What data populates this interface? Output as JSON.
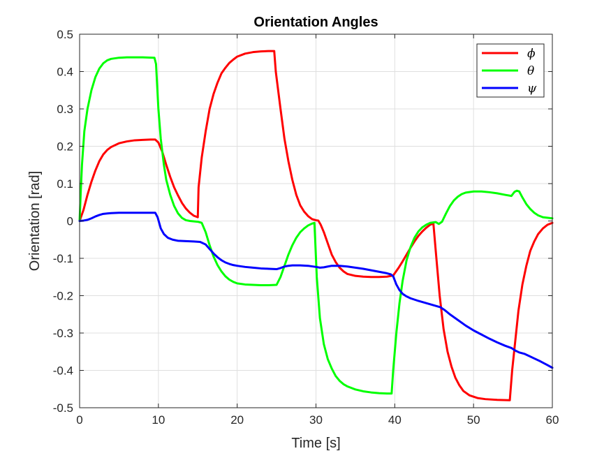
{
  "chart_data": {
    "type": "line",
    "title": "Orientation Angles",
    "xlabel": "Time [s]",
    "ylabel": "Orientation [rad]",
    "xlim": [
      0,
      60
    ],
    "ylim": [
      -0.5,
      0.5
    ],
    "xticks": [
      0,
      10,
      20,
      30,
      40,
      50,
      60
    ],
    "xtick_labels": [
      "0",
      "10",
      "20",
      "30",
      "40",
      "50",
      "60"
    ],
    "yticks": [
      -0.5,
      -0.4,
      -0.3,
      -0.2,
      -0.1,
      0,
      0.1,
      0.2,
      0.3,
      0.4,
      0.5
    ],
    "ytick_labels": [
      "-0.5",
      "-0.4",
      "-0.3",
      "-0.2",
      "-0.1",
      "0",
      "0.1",
      "0.2",
      "0.3",
      "0.4",
      "0.5"
    ],
    "grid": true,
    "legend_position": "top-right",
    "series": [
      {
        "name": "ϕ",
        "color": "#ff0000",
        "points": [
          [
            0,
            0
          ],
          [
            0.5,
            0.03
          ],
          [
            1,
            0.07
          ],
          [
            1.5,
            0.105
          ],
          [
            2,
            0.135
          ],
          [
            2.5,
            0.16
          ],
          [
            3,
            0.178
          ],
          [
            3.5,
            0.19
          ],
          [
            4,
            0.198
          ],
          [
            5,
            0.208
          ],
          [
            6,
            0.213
          ],
          [
            7,
            0.216
          ],
          [
            8,
            0.217
          ],
          [
            9,
            0.218
          ],
          [
            9.6,
            0.218
          ],
          [
            10,
            0.21
          ],
          [
            10.5,
            0.185
          ],
          [
            11,
            0.15
          ],
          [
            11.5,
            0.118
          ],
          [
            12,
            0.09
          ],
          [
            12.5,
            0.068
          ],
          [
            13,
            0.048
          ],
          [
            13.5,
            0.033
          ],
          [
            14,
            0.022
          ],
          [
            14.5,
            0.014
          ],
          [
            15,
            0.01
          ],
          [
            15.1,
            0.09
          ],
          [
            15.5,
            0.17
          ],
          [
            16,
            0.24
          ],
          [
            16.5,
            0.3
          ],
          [
            17,
            0.34
          ],
          [
            17.5,
            0.37
          ],
          [
            18,
            0.395
          ],
          [
            18.5,
            0.41
          ],
          [
            19,
            0.423
          ],
          [
            19.5,
            0.432
          ],
          [
            20,
            0.44
          ],
          [
            21,
            0.448
          ],
          [
            22,
            0.452
          ],
          [
            23,
            0.454
          ],
          [
            24,
            0.455
          ],
          [
            24.7,
            0.455
          ],
          [
            24.9,
            0.4
          ],
          [
            25.5,
            0.3
          ],
          [
            26,
            0.22
          ],
          [
            26.5,
            0.16
          ],
          [
            27,
            0.11
          ],
          [
            27.5,
            0.07
          ],
          [
            28,
            0.042
          ],
          [
            28.5,
            0.025
          ],
          [
            29,
            0.013
          ],
          [
            29.5,
            0.005
          ],
          [
            30,
            0.002
          ],
          [
            30.3,
            0.001
          ],
          [
            30.6,
            -0.01
          ],
          [
            31,
            -0.03
          ],
          [
            31.5,
            -0.06
          ],
          [
            32,
            -0.09
          ],
          [
            32.5,
            -0.11
          ],
          [
            33,
            -0.125
          ],
          [
            33.5,
            -0.135
          ],
          [
            34,
            -0.142
          ],
          [
            35,
            -0.147
          ],
          [
            36,
            -0.149
          ],
          [
            37,
            -0.15
          ],
          [
            38,
            -0.15
          ],
          [
            39,
            -0.149
          ],
          [
            39.8,
            -0.146
          ],
          [
            40.5,
            -0.125
          ],
          [
            41,
            -0.108
          ],
          [
            41.5,
            -0.09
          ],
          [
            42,
            -0.072
          ],
          [
            42.5,
            -0.055
          ],
          [
            43,
            -0.04
          ],
          [
            43.5,
            -0.028
          ],
          [
            44,
            -0.018
          ],
          [
            44.5,
            -0.01
          ],
          [
            44.9,
            -0.006
          ],
          [
            45.2,
            -0.08
          ],
          [
            45.7,
            -0.2
          ],
          [
            46.2,
            -0.29
          ],
          [
            46.7,
            -0.35
          ],
          [
            47.2,
            -0.39
          ],
          [
            47.7,
            -0.42
          ],
          [
            48.2,
            -0.44
          ],
          [
            48.7,
            -0.455
          ],
          [
            49.5,
            -0.467
          ],
          [
            50.5,
            -0.474
          ],
          [
            51.5,
            -0.477
          ],
          [
            53,
            -0.479
          ],
          [
            54.6,
            -0.48
          ],
          [
            54.9,
            -0.4
          ],
          [
            55.3,
            -0.32
          ],
          [
            55.7,
            -0.24
          ],
          [
            56.2,
            -0.17
          ],
          [
            56.7,
            -0.12
          ],
          [
            57.2,
            -0.08
          ],
          [
            57.7,
            -0.055
          ],
          [
            58.2,
            -0.035
          ],
          [
            58.8,
            -0.02
          ],
          [
            59.4,
            -0.01
          ],
          [
            60,
            -0.005
          ]
        ]
      },
      {
        "name": "θ",
        "color": "#00ff00",
        "points": [
          [
            0,
            0
          ],
          [
            0.15,
            0.08
          ],
          [
            0.3,
            0.15
          ],
          [
            0.6,
            0.24
          ],
          [
            1,
            0.3
          ],
          [
            1.5,
            0.35
          ],
          [
            2,
            0.385
          ],
          [
            2.5,
            0.408
          ],
          [
            3,
            0.422
          ],
          [
            3.5,
            0.43
          ],
          [
            4,
            0.434
          ],
          [
            5,
            0.437
          ],
          [
            6,
            0.438
          ],
          [
            7,
            0.438
          ],
          [
            8,
            0.438
          ],
          [
            9.5,
            0.437
          ],
          [
            9.7,
            0.42
          ],
          [
            10,
            0.3
          ],
          [
            10.3,
            0.22
          ],
          [
            10.7,
            0.15
          ],
          [
            11,
            0.11
          ],
          [
            11.5,
            0.07
          ],
          [
            12,
            0.04
          ],
          [
            12.5,
            0.02
          ],
          [
            13,
            0.008
          ],
          [
            13.5,
            0.002
          ],
          [
            14,
            0
          ],
          [
            15,
            -0.002
          ],
          [
            15.5,
            -0.005
          ],
          [
            16,
            -0.03
          ],
          [
            16.5,
            -0.065
          ],
          [
            17,
            -0.095
          ],
          [
            17.5,
            -0.118
          ],
          [
            18,
            -0.135
          ],
          [
            18.5,
            -0.148
          ],
          [
            19,
            -0.157
          ],
          [
            19.5,
            -0.163
          ],
          [
            20,
            -0.167
          ],
          [
            21,
            -0.17
          ],
          [
            22,
            -0.171
          ],
          [
            23,
            -0.172
          ],
          [
            24,
            -0.172
          ],
          [
            25,
            -0.171
          ],
          [
            25.5,
            -0.15
          ],
          [
            26,
            -0.12
          ],
          [
            26.5,
            -0.09
          ],
          [
            27,
            -0.065
          ],
          [
            27.5,
            -0.045
          ],
          [
            28,
            -0.03
          ],
          [
            28.5,
            -0.02
          ],
          [
            29,
            -0.012
          ],
          [
            29.5,
            -0.007
          ],
          [
            29.8,
            -0.005
          ],
          [
            29.9,
            -0.05
          ],
          [
            30.1,
            -0.15
          ],
          [
            30.5,
            -0.26
          ],
          [
            31,
            -0.33
          ],
          [
            31.5,
            -0.37
          ],
          [
            32,
            -0.395
          ],
          [
            32.5,
            -0.415
          ],
          [
            33,
            -0.428
          ],
          [
            33.5,
            -0.437
          ],
          [
            34,
            -0.443
          ],
          [
            35,
            -0.451
          ],
          [
            36,
            -0.456
          ],
          [
            37,
            -0.459
          ],
          [
            38,
            -0.461
          ],
          [
            39,
            -0.462
          ],
          [
            39.6,
            -0.462
          ],
          [
            39.8,
            -0.4
          ],
          [
            40.2,
            -0.3
          ],
          [
            40.6,
            -0.22
          ],
          [
            41,
            -0.16
          ],
          [
            41.5,
            -0.105
          ],
          [
            42,
            -0.07
          ],
          [
            42.5,
            -0.045
          ],
          [
            43,
            -0.028
          ],
          [
            43.5,
            -0.017
          ],
          [
            44,
            -0.01
          ],
          [
            44.5,
            -0.005
          ],
          [
            45.2,
            -0.003
          ],
          [
            45.6,
            -0.008
          ],
          [
            46,
            -0.002
          ],
          [
            46.5,
            0.02
          ],
          [
            47,
            0.04
          ],
          [
            47.5,
            0.055
          ],
          [
            48,
            0.065
          ],
          [
            48.5,
            0.072
          ],
          [
            49,
            0.076
          ],
          [
            50,
            0.079
          ],
          [
            51,
            0.079
          ],
          [
            52,
            0.077
          ],
          [
            53,
            0.074
          ],
          [
            54,
            0.07
          ],
          [
            54.8,
            0.067
          ],
          [
            55.2,
            0.078
          ],
          [
            55.5,
            0.081
          ],
          [
            55.8,
            0.079
          ],
          [
            56.2,
            0.063
          ],
          [
            56.7,
            0.045
          ],
          [
            57.2,
            0.032
          ],
          [
            57.7,
            0.022
          ],
          [
            58.2,
            0.015
          ],
          [
            58.8,
            0.01
          ],
          [
            60,
            0.007
          ]
        ]
      },
      {
        "name": "ψ",
        "color": "#0000ff",
        "points": [
          [
            0,
            0
          ],
          [
            0.5,
            0.001
          ],
          [
            1,
            0.003
          ],
          [
            1.5,
            0.007
          ],
          [
            2,
            0.012
          ],
          [
            2.5,
            0.016
          ],
          [
            3,
            0.019
          ],
          [
            3.5,
            0.02
          ],
          [
            4,
            0.021
          ],
          [
            5,
            0.022
          ],
          [
            6,
            0.022
          ],
          [
            7,
            0.022
          ],
          [
            8,
            0.022
          ],
          [
            9,
            0.022
          ],
          [
            9.6,
            0.022
          ],
          [
            9.9,
            0.01
          ],
          [
            10.3,
            -0.02
          ],
          [
            10.7,
            -0.035
          ],
          [
            11.2,
            -0.045
          ],
          [
            11.8,
            -0.05
          ],
          [
            12.5,
            -0.053
          ],
          [
            13.5,
            -0.054
          ],
          [
            14.5,
            -0.055
          ],
          [
            15.3,
            -0.056
          ],
          [
            16,
            -0.063
          ],
          [
            16.5,
            -0.075
          ],
          [
            17,
            -0.087
          ],
          [
            17.5,
            -0.097
          ],
          [
            18,
            -0.105
          ],
          [
            18.5,
            -0.111
          ],
          [
            19,
            -0.115
          ],
          [
            19.5,
            -0.118
          ],
          [
            20,
            -0.12
          ],
          [
            21,
            -0.123
          ],
          [
            22,
            -0.125
          ],
          [
            23,
            -0.127
          ],
          [
            24,
            -0.128
          ],
          [
            25,
            -0.129
          ],
          [
            25.5,
            -0.126
          ],
          [
            26,
            -0.122
          ],
          [
            26.5,
            -0.12
          ],
          [
            27,
            -0.119
          ],
          [
            28,
            -0.119
          ],
          [
            29,
            -0.12
          ],
          [
            30,
            -0.123
          ],
          [
            30.5,
            -0.125
          ],
          [
            31,
            -0.124
          ],
          [
            31.5,
            -0.122
          ],
          [
            32,
            -0.12
          ],
          [
            33,
            -0.12
          ],
          [
            34,
            -0.122
          ],
          [
            35,
            -0.125
          ],
          [
            36,
            -0.128
          ],
          [
            37,
            -0.132
          ],
          [
            38,
            -0.136
          ],
          [
            39,
            -0.14
          ],
          [
            39.5,
            -0.143
          ],
          [
            39.8,
            -0.148
          ],
          [
            40.2,
            -0.17
          ],
          [
            40.6,
            -0.185
          ],
          [
            41,
            -0.195
          ],
          [
            41.5,
            -0.202
          ],
          [
            42,
            -0.207
          ],
          [
            43,
            -0.214
          ],
          [
            44,
            -0.22
          ],
          [
            45,
            -0.226
          ],
          [
            45.8,
            -0.231
          ],
          [
            46.3,
            -0.238
          ],
          [
            47,
            -0.25
          ],
          [
            48,
            -0.265
          ],
          [
            49,
            -0.28
          ],
          [
            50,
            -0.293
          ],
          [
            51,
            -0.304
          ],
          [
            52,
            -0.315
          ],
          [
            53,
            -0.325
          ],
          [
            54,
            -0.334
          ],
          [
            54.8,
            -0.34
          ],
          [
            55.3,
            -0.347
          ],
          [
            55.8,
            -0.352
          ],
          [
            56.5,
            -0.356
          ],
          [
            57.5,
            -0.366
          ],
          [
            58.5,
            -0.376
          ],
          [
            59.3,
            -0.385
          ],
          [
            60,
            -0.393
          ]
        ]
      }
    ]
  }
}
